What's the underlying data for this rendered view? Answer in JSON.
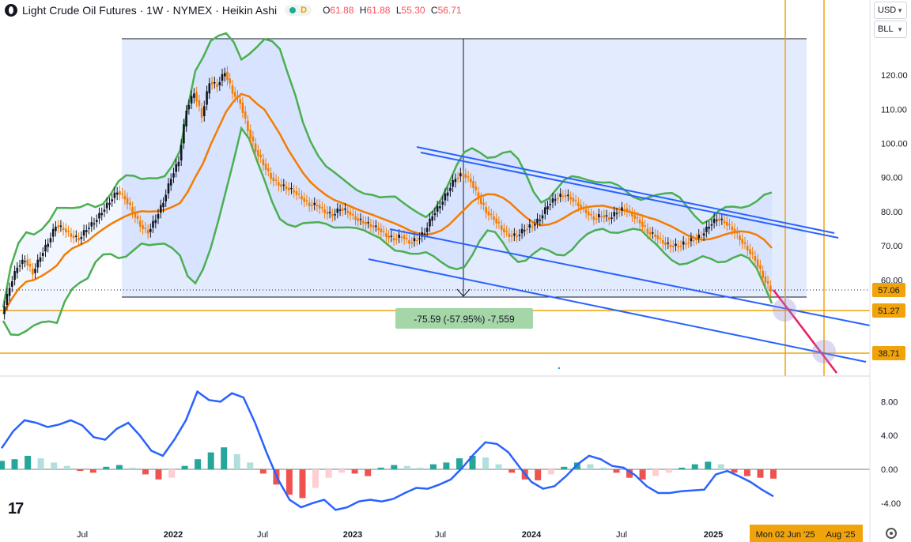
{
  "header": {
    "title": "Light Crude Oil Futures · 1W · NYMEX · Heikin Ashi",
    "status_letter": "D",
    "ohlc": [
      {
        "label": "O",
        "value": "61.88"
      },
      {
        "label": "H",
        "value": "61.88"
      },
      {
        "label": "L",
        "value": "55.30"
      },
      {
        "label": "C",
        "value": "56.71"
      }
    ]
  },
  "controls": {
    "currency": "USD",
    "unit": "BLL"
  },
  "colors": {
    "up_candle": "#131722",
    "down_candle": "#f57c00",
    "bollinger": "#4caf50",
    "basis": "#f57c00",
    "trendline": "#2962ff",
    "horizontal": "#f0a30a",
    "projection": "#e91e63",
    "macd": "#2962ff",
    "price_box": "#2962ff"
  },
  "chart_data": [
    {
      "type": "candlestick",
      "title": "Light Crude Oil Futures",
      "x_ticks": [
        "Jul",
        "2022",
        "Jul",
        "2023",
        "Jul",
        "2024",
        "Jul",
        "2025"
      ],
      "x_axis_end_labels": [
        "Mon 02 Jun '25",
        "Aug '25"
      ],
      "y_ticks": [
        60.0,
        70.0,
        80.0,
        90.0,
        100.0,
        110.0,
        120.0
      ],
      "ylim": [
        30,
        135
      ],
      "last_price_label": "57.06",
      "level_labels": [
        "51.27",
        "38.71"
      ],
      "measure_label": "-75.59 (-57.95%) -7,559",
      "measure_range": [
        55.3,
        130.3
      ],
      "series": [
        {
          "name": "Heikin Ashi close (approx. weekly)",
          "values": [
            50,
            58,
            64,
            66,
            62,
            67,
            71,
            76,
            75,
            73,
            72,
            75,
            77,
            80,
            83,
            86,
            84,
            80,
            76,
            74,
            78,
            83,
            90,
            95,
            110,
            115,
            108,
            118,
            117,
            121,
            115,
            112,
            104,
            98,
            94,
            90,
            88,
            87,
            86,
            84,
            82,
            82,
            80,
            79,
            81,
            80,
            78,
            77,
            76,
            75,
            73,
            72,
            73,
            71,
            72,
            74,
            79,
            82,
            86,
            90,
            91,
            89,
            84,
            80,
            78,
            75,
            73,
            73,
            75,
            76,
            78,
            82,
            84,
            85,
            84,
            82,
            80,
            78,
            79,
            78,
            80,
            81,
            79,
            77,
            74,
            73,
            71,
            70,
            70,
            71,
            72,
            73,
            76,
            78,
            77,
            75,
            72,
            69,
            66,
            61,
            57
          ]
        }
      ]
    },
    {
      "type": "line",
      "name": "MACD",
      "y_ticks": [
        -4.0,
        0.0,
        4.0,
        8.0
      ],
      "ylim": [
        -5,
        10
      ],
      "series": [
        {
          "name": "macd",
          "values": [
            2.5,
            4.5,
            5.8,
            5.5,
            5.0,
            5.3,
            5.8,
            5.2,
            3.8,
            3.5,
            4.8,
            5.5,
            4.0,
            2.2,
            1.6,
            3.5,
            5.8,
            9.2,
            8.2,
            8.0,
            9.0,
            8.5,
            5.5,
            2.0,
            -1.2,
            -3.6,
            -4.5,
            -4.0,
            -3.6,
            -4.8,
            -4.5,
            -3.8,
            -3.6,
            -3.8,
            -3.5,
            -2.8,
            -2.2,
            -2.3,
            -1.8,
            -1.2,
            0.2,
            1.8,
            3.2,
            3.0,
            2.0,
            0.2,
            -1.5,
            -2.3,
            -2.0,
            -0.8,
            0.6,
            1.6,
            1.2,
            0.4,
            0.2,
            -0.7,
            -2.0,
            -2.8,
            -2.8,
            -2.6,
            -2.5,
            -2.4,
            -0.6,
            -0.2,
            -0.8,
            -1.5,
            -2.4,
            -3.2
          ]
        },
        {
          "name": "histogram",
          "values": [
            1.0,
            1.2,
            1.6,
            1.3,
            0.8,
            0.4,
            -0.2,
            -0.4,
            0.3,
            0.5,
            0.2,
            -0.6,
            -1.2,
            -1.0,
            0.4,
            1.2,
            2.0,
            2.6,
            1.8,
            0.8,
            -0.5,
            -1.8,
            -3.0,
            -3.4,
            -2.2,
            -1.0,
            -0.4,
            -0.5,
            -0.8,
            0.2,
            0.5,
            0.4,
            0.2,
            0.6,
            0.8,
            1.3,
            1.6,
            1.4,
            0.6,
            -0.4,
            -1.2,
            -1.3,
            -0.6,
            0.3,
            0.8,
            0.6,
            0.2,
            -0.4,
            -1.0,
            -1.2,
            -0.8,
            -0.4,
            0.2,
            0.6,
            0.9,
            0.6,
            -0.4,
            -0.8,
            -1.0,
            -1.1
          ]
        }
      ]
    }
  ]
}
